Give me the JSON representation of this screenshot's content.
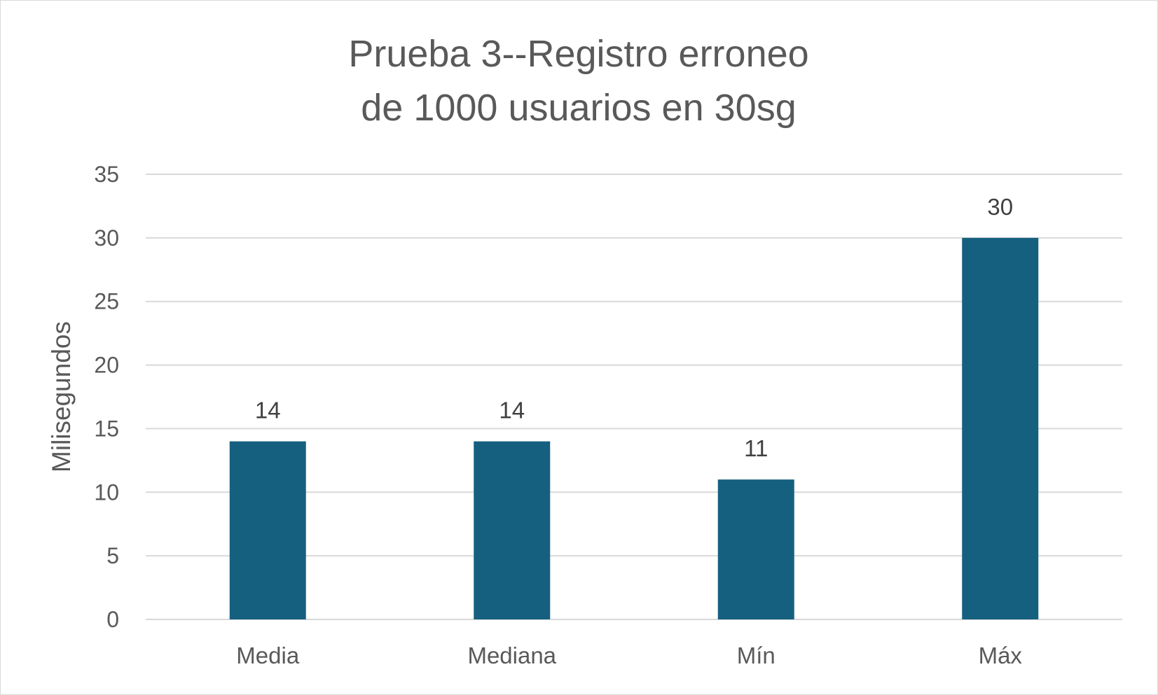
{
  "chart_data": {
    "type": "bar",
    "title_lines": [
      "Prueba 3--Registro erroneo",
      "de 1000 usuarios en 30sg"
    ],
    "ylabel": "Milisegundos",
    "xlabel": "",
    "categories": [
      "Media",
      "Mediana",
      "Mín",
      "Máx"
    ],
    "values": [
      14,
      14,
      11,
      30
    ],
    "data_labels": [
      "14",
      "14",
      "11",
      "30"
    ],
    "ylim": [
      0,
      35
    ],
    "yticks": [
      0,
      5,
      10,
      15,
      20,
      25,
      30,
      35
    ],
    "grid": true,
    "legend": "none",
    "bar_color": "#15607f",
    "grid_color": "#d9d9d9",
    "text_color": "#595959"
  }
}
